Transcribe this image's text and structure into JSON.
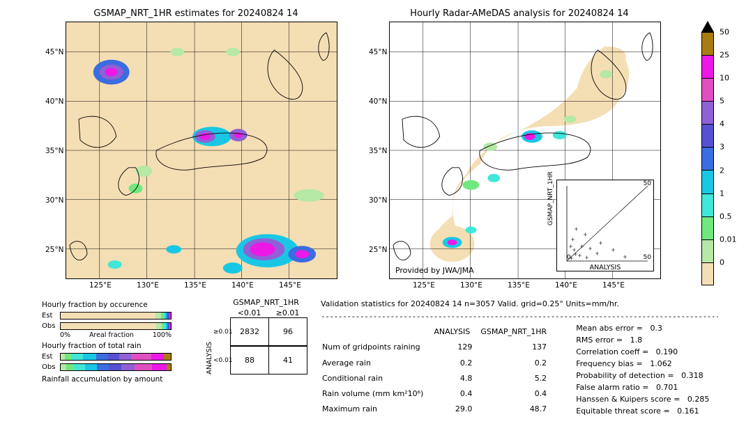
{
  "date_label": "20240824 14",
  "map_left": {
    "title": "GSMAP_NRT_1HR estimates for 20240824 14",
    "bg_color": "#f4deb4",
    "border_color": "#000000",
    "x_ticks": [
      "125°E",
      "130°E",
      "135°E",
      "140°E",
      "145°E"
    ],
    "y_ticks": [
      "25°N",
      "30°N",
      "35°N",
      "40°N",
      "45°N"
    ],
    "xlim": [
      120,
      150
    ],
    "ylim": [
      22,
      48
    ]
  },
  "map_right": {
    "title": "Hourly Radar-AMeDAS analysis for 20240824 14",
    "bg_color": "#ffffff",
    "border_color": "#000000",
    "x_ticks": [
      "125°E",
      "130°E",
      "135°E",
      "140°E",
      "145°E"
    ],
    "y_ticks": [
      "25°N",
      "30°N",
      "35°N",
      "40°N",
      "45°N"
    ],
    "xlim": [
      120,
      150
    ],
    "ylim": [
      22,
      48
    ],
    "attribution": "Provided by JWA/JMA"
  },
  "colorbar": {
    "levels": [
      "50",
      "25",
      "10",
      "5",
      "4",
      "3",
      "2",
      "1",
      "0.5",
      "0.01",
      "0"
    ],
    "colors": [
      "#a87c12",
      "#ec19e6",
      "#e04fc2",
      "#9060d6",
      "#5750d0",
      "#3b6ce0",
      "#19c7e5",
      "#41e7d8",
      "#70e87e",
      "#b6e8a6",
      "#f4deb4"
    ],
    "arrow_top": true
  },
  "scatter_inset": {
    "xlabel": "ANALYSIS",
    "ylabel": "GSMAP_NRT_1HR",
    "xlim": [
      0,
      50
    ],
    "ylim": [
      0,
      50
    ],
    "ticks": [
      0,
      10,
      20,
      30,
      40,
      50
    ]
  },
  "hourly_fraction_occurrence": {
    "title": "Hourly fraction by occurence",
    "series_labels": [
      "Est",
      "Obs"
    ],
    "axis_label": "Areal fraction",
    "axis_ticks": [
      "0%",
      "100%"
    ],
    "est_segs": [
      {
        "w": 86,
        "c": "#f4deb4"
      },
      {
        "w": 5,
        "c": "#b6e8a6"
      },
      {
        "w": 2,
        "c": "#70e87e"
      },
      {
        "w": 2,
        "c": "#41e7d8"
      },
      {
        "w": 1.5,
        "c": "#19c7e5"
      },
      {
        "w": 1.2,
        "c": "#3b6ce0"
      },
      {
        "w": 0.8,
        "c": "#5750d0"
      },
      {
        "w": 0.8,
        "c": "#9060d6"
      },
      {
        "w": 0.5,
        "c": "#ec19e6"
      },
      {
        "w": 0.2,
        "c": "#a87c12"
      }
    ],
    "obs_segs": [
      {
        "w": 87,
        "c": "#f4deb4"
      },
      {
        "w": 4.5,
        "c": "#b6e8a6"
      },
      {
        "w": 2,
        "c": "#70e87e"
      },
      {
        "w": 2,
        "c": "#41e7d8"
      },
      {
        "w": 1.5,
        "c": "#19c7e5"
      },
      {
        "w": 1,
        "c": "#3b6ce0"
      },
      {
        "w": 0.7,
        "c": "#5750d0"
      },
      {
        "w": 0.6,
        "c": "#9060d6"
      },
      {
        "w": 0.5,
        "c": "#ec19e6"
      },
      {
        "w": 0.2,
        "c": "#a87c12"
      }
    ]
  },
  "hourly_fraction_total": {
    "title": "Hourly fraction of total rain",
    "series_labels": [
      "Est",
      "Obs"
    ],
    "est_segs": [
      {
        "w": 4,
        "c": "#b6e8a6"
      },
      {
        "w": 6,
        "c": "#70e87e"
      },
      {
        "w": 10,
        "c": "#41e7d8"
      },
      {
        "w": 12,
        "c": "#19c7e5"
      },
      {
        "w": 11,
        "c": "#3b6ce0"
      },
      {
        "w": 10,
        "c": "#5750d0"
      },
      {
        "w": 11,
        "c": "#9060d6"
      },
      {
        "w": 18,
        "c": "#e04fc2"
      },
      {
        "w": 12,
        "c": "#ec19e6"
      },
      {
        "w": 6,
        "c": "#a87c12"
      }
    ],
    "obs_segs": [
      {
        "w": 5,
        "c": "#b6e8a6"
      },
      {
        "w": 7,
        "c": "#70e87e"
      },
      {
        "w": 10,
        "c": "#41e7d8"
      },
      {
        "w": 11,
        "c": "#19c7e5"
      },
      {
        "w": 11,
        "c": "#3b6ce0"
      },
      {
        "w": 11,
        "c": "#5750d0"
      },
      {
        "w": 12,
        "c": "#9060d6"
      },
      {
        "w": 16,
        "c": "#e04fc2"
      },
      {
        "w": 13,
        "c": "#ec19e6"
      },
      {
        "w": 4,
        "c": "#a87c12"
      }
    ]
  },
  "rainfall_accum_label": "Rainfall accumulation by amount",
  "contingency": {
    "col_title": "GSMAP_NRT_1HR",
    "row_title": "ANALYSIS",
    "col_labels": [
      "<0.01",
      "≥0.01"
    ],
    "row_labels": [
      "≥0.01",
      "<0.01"
    ],
    "cells": [
      [
        2832,
        96
      ],
      [
        88,
        41
      ]
    ]
  },
  "validation": {
    "header": "Validation statistics for 20240824 14  n=3057 Valid. grid=0.25° Units=mm/hr.",
    "table_cols": [
      "ANALYSIS",
      "GSMAP_NRT_1HR"
    ],
    "rows": [
      {
        "label": "Num of gridpoints raining",
        "a": "129",
        "b": "137"
      },
      {
        "label": "Average rain",
        "a": "0.2",
        "b": "0.2"
      },
      {
        "label": "Conditional rain",
        "a": "4.8",
        "b": "5.2"
      },
      {
        "label": "Rain volume (mm km²10⁶)",
        "a": "0.4",
        "b": "0.4"
      },
      {
        "label": "Maximum rain",
        "a": "29.0",
        "b": "48.7"
      }
    ]
  },
  "scores": [
    {
      "label": "Mean abs error =",
      "v": "0.3"
    },
    {
      "label": "RMS error =",
      "v": "1.8"
    },
    {
      "label": "Correlation coeff =",
      "v": "0.190"
    },
    {
      "label": "Frequency bias =",
      "v": "1.062"
    },
    {
      "label": "Probability of detection =",
      "v": "0.318"
    },
    {
      "label": "False alarm ratio =",
      "v": "0.701"
    },
    {
      "label": "Hanssen & Kuipers score =",
      "v": "0.285"
    },
    {
      "label": "Equitable threat score =",
      "v": "0.161"
    }
  ],
  "precip_palette": {
    "bg": "#f4deb4",
    "lo": "#b6e8a6",
    "g": "#70e87e",
    "cy": "#41e7d8",
    "cy2": "#19c7e5",
    "bl": "#3b6ce0",
    "db": "#5750d0",
    "pu": "#9060d6",
    "pk": "#e04fc2",
    "mg": "#ec19e6",
    "br": "#a87c12"
  }
}
